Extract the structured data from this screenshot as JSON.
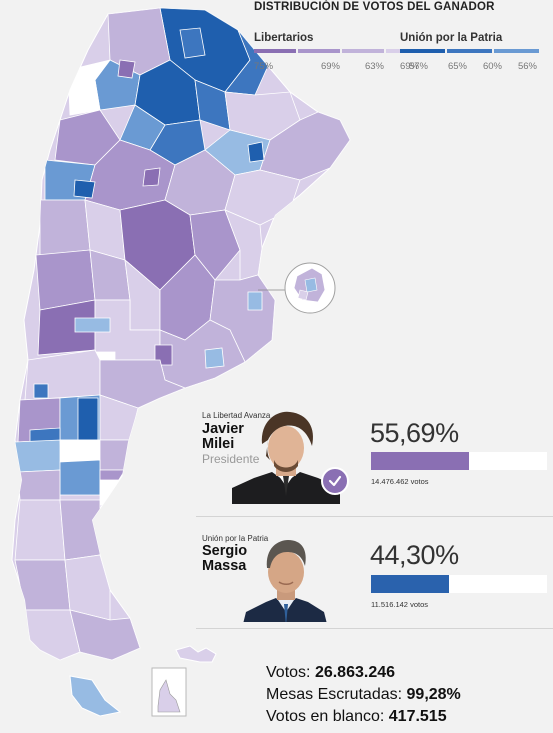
{
  "legend": {
    "title": "DISTRIBUCIÓN DE VOTOS DEL GANADOR",
    "groups": [
      {
        "name": "Libertarios",
        "colors": [
          "#8a6fb3",
          "#a995cb",
          "#c1b3da",
          "#d9cfe9"
        ],
        "ticks": [
          "75%",
          "69%",
          "63%",
          "57%"
        ]
      },
      {
        "name": "Unión por la Patria",
        "colors": [
          "#1f5fae",
          "#3d76bf",
          "#6a9ad3",
          "#97bbe3"
        ],
        "ticks": [
          "69%",
          "65%",
          "60%",
          "56%"
        ]
      }
    ]
  },
  "candidates": [
    {
      "party": "La Libertad Avanza",
      "first": "Javier",
      "last": "Milei",
      "role": "Presidente",
      "pct_label": "55,69%",
      "share": 0.5569,
      "votes": "14.476.462 votos",
      "color": "#8a6fb3",
      "winner": true
    },
    {
      "party": "Unión por la Patria",
      "first": "Sergio",
      "last": "Massa",
      "role": "",
      "pct_label": "44,30%",
      "share": 0.443,
      "votes": "11.516.142 votos",
      "color": "#2a62ad",
      "winner": false
    }
  ],
  "stats": {
    "votos_label": "Votos:",
    "votos_value": "26.863.246",
    "mesas_label": "Mesas Escrutadas:",
    "mesas_value": "99,28%",
    "blanco_label": "Votos en blanco:",
    "blanco_value": "417.515"
  },
  "map": {
    "background": "#f2f2f2",
    "libertarios_colors": [
      "#8a6fb3",
      "#a995cb",
      "#c1b3da",
      "#d9cfe9"
    ],
    "union_colors": [
      "#1f5fae",
      "#3d76bf",
      "#6a9ad3",
      "#97bbe3"
    ],
    "no_data_color": "#ffffff"
  }
}
